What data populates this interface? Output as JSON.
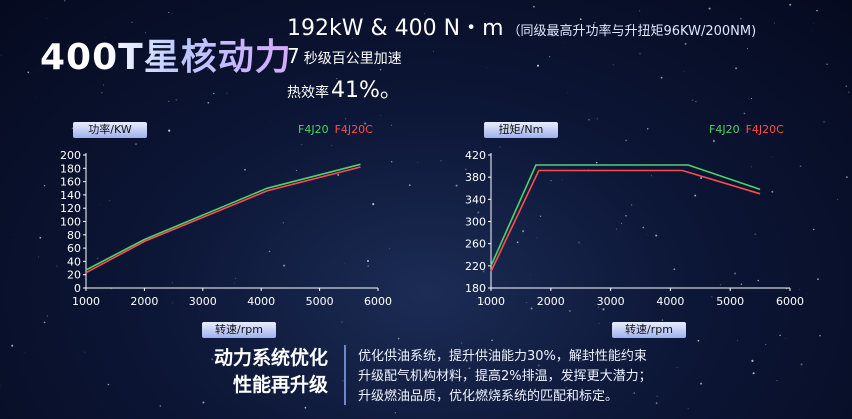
{
  "headline": "400T星核动力",
  "specs": {
    "power_torque": "192kW & 400 N・m",
    "power_torque_note": "（同级最高升功率与升扭矩96KW/200NM)",
    "accel_value": "7",
    "accel_text": "秒级百公里加速",
    "efficiency_label": "热效率",
    "efficiency_value": "41%。"
  },
  "colors": {
    "series_a": "#4fd26b",
    "series_b": "#ff4d4d",
    "accent": "#6f86c8"
  },
  "bottom": {
    "title_line1": "动力系统优化",
    "title_line2": "性能再升级",
    "desc_lines": [
      "优化供油系统，提升供油能力30%，解封性能约束",
      "升级配气机构材料，提高2%排温，发挥更大潜力；",
      "升级燃油品质，优化燃烧系统的匹配和标定。"
    ]
  },
  "chart_data": [
    {
      "type": "line",
      "ylabel": "功率/KW",
      "xlabel": "转速/rpm",
      "xlim": [
        1000,
        6000
      ],
      "ylim": [
        0,
        200
      ],
      "xticks": [
        1000,
        2000,
        3000,
        4000,
        5000,
        6000
      ],
      "yticks": [
        0,
        20,
        40,
        60,
        80,
        100,
        120,
        140,
        160,
        180,
        200
      ],
      "grid": false,
      "legend_position": "top-right",
      "series": [
        {
          "name": "F4J20",
          "color": "#4fd26b",
          "x": [
            1000,
            2000,
            4100,
            5700
          ],
          "y": [
            27,
            73,
            150,
            186
          ]
        },
        {
          "name": "F4J20C",
          "color": "#ff4d4d",
          "x": [
            1000,
            2000,
            4100,
            5700
          ],
          "y": [
            23,
            70,
            146,
            182
          ]
        }
      ]
    },
    {
      "type": "line",
      "ylabel": "扭矩/Nm",
      "xlabel": "转速/rpm",
      "xlim": [
        1000,
        6000
      ],
      "ylim": [
        180,
        420
      ],
      "xticks": [
        1000,
        2000,
        3000,
        4000,
        5000,
        6000
      ],
      "yticks": [
        180,
        220,
        260,
        300,
        340,
        380,
        420
      ],
      "grid": false,
      "legend_position": "top-right",
      "series": [
        {
          "name": "F4J20",
          "color": "#4fd26b",
          "x": [
            1000,
            1750,
            4300,
            5500
          ],
          "y": [
            220,
            402,
            402,
            358
          ]
        },
        {
          "name": "F4J20C",
          "color": "#ff4d4d",
          "x": [
            1000,
            1800,
            4200,
            5500
          ],
          "y": [
            210,
            392,
            392,
            350
          ]
        }
      ]
    }
  ]
}
